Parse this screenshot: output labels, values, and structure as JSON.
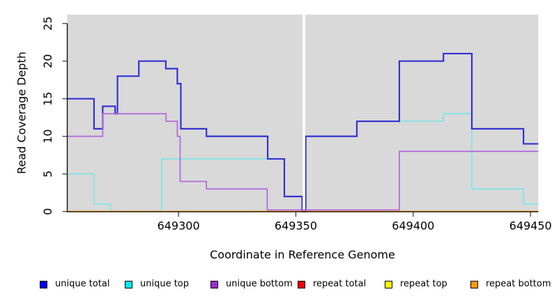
{
  "chart_data": {
    "type": "line",
    "subtype": "step-coverage-plot",
    "title": "",
    "xlabel": "Coordinate in Reference Genome",
    "ylabel": "Read Coverage Depth",
    "xlim": [
      649252.6,
      649453.3
    ],
    "ylim": [
      0,
      26.18
    ],
    "x_ticks": [
      649300,
      649350,
      649400,
      649450
    ],
    "y_ticks": [
      0,
      5,
      10,
      15,
      20,
      25
    ],
    "grid": false,
    "plot_bg_color": "#d9d9d9",
    "axis_color": "#3f3f3f",
    "gap": {
      "x1": 649352.9,
      "x2": 649354.0
    },
    "series": [
      {
        "name": "repeat total",
        "line_color": "#dd3333",
        "width": 1.7,
        "layer": 0,
        "steps": [
          [
            649252.6,
            0
          ]
        ]
      },
      {
        "name": "repeat top",
        "line_color": "#ffff44",
        "width": 1.7,
        "layer": 0,
        "steps": [
          [
            649252.6,
            0
          ]
        ]
      },
      {
        "name": "unique top",
        "line_color": "#7ce5e9",
        "width": 1.7,
        "layer": 0,
        "steps": [
          [
            649252.6,
            5
          ],
          [
            649264,
            1
          ],
          [
            649271,
            0
          ],
          [
            649292.8,
            7
          ],
          [
            649345.1,
            2
          ],
          [
            649352.7,
            0
          ],
          [
            649354.2,
            10
          ],
          [
            649376,
            12
          ],
          [
            649412.9,
            13
          ],
          [
            649425,
            3
          ],
          [
            649447,
            1
          ]
        ]
      },
      {
        "name": "unique total",
        "line_color": "#3232d2",
        "width": 2.2,
        "layer": 0,
        "steps": [
          [
            649252.6,
            15
          ],
          [
            649264,
            11
          ],
          [
            649267.7,
            14
          ],
          [
            649273,
            13
          ],
          [
            649274,
            18
          ],
          [
            649283.1,
            20
          ],
          [
            649294.6,
            19
          ],
          [
            649299.5,
            17
          ],
          [
            649301,
            11
          ],
          [
            649311.9,
            10
          ],
          [
            649338,
            7
          ],
          [
            649345.1,
            2
          ],
          [
            649352.7,
            0
          ],
          [
            649354.2,
            10
          ],
          [
            649376,
            12
          ],
          [
            649394.1,
            20
          ],
          [
            649412.9,
            21
          ],
          [
            649425,
            11
          ],
          [
            649447,
            9
          ]
        ]
      },
      {
        "name": "repeat bottom",
        "line_color": "#ff9e00",
        "width": 2.0,
        "layer": 1,
        "steps": [
          [
            649252.6,
            0
          ]
        ]
      },
      {
        "name": "unique bottom",
        "line_color": "#b266da",
        "width": 1.7,
        "layer": 1,
        "zero_dy": -2.2,
        "steps": [
          [
            649252.6,
            10
          ],
          [
            649267.7,
            13
          ],
          [
            649294.7,
            12
          ],
          [
            649299.5,
            10
          ],
          [
            649300.7,
            4
          ],
          [
            649311.9,
            3
          ],
          [
            649337.8,
            0
          ],
          [
            649394.1,
            8
          ]
        ]
      }
    ],
    "legend": [
      {
        "label": "unique total",
        "swatch_color": "#0000ee"
      },
      {
        "label": "unique top",
        "swatch_color": "#00eeee"
      },
      {
        "label": "unique bottom",
        "swatch_color": "#9932cc"
      },
      {
        "label": "repeat total",
        "swatch_color": "#ee0000"
      },
      {
        "label": "repeat top",
        "swatch_color": "#ffff00"
      },
      {
        "label": "repeat bottom",
        "swatch_color": "#ff9900"
      }
    ],
    "legend_position": "bottom"
  }
}
